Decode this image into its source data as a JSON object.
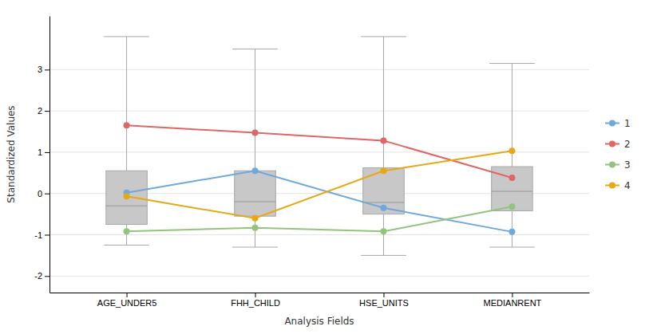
{
  "chart_data": {
    "type": "box",
    "xlabel": "Analysis Fields",
    "ylabel": "Standardized Values",
    "categories": [
      "AGE_UNDER5",
      "FHH_CHILD",
      "HSE_UNITS",
      "MEDIANRENT"
    ],
    "boxes": [
      {
        "q1": -0.75,
        "median": -0.3,
        "q3": 0.55,
        "whisker_low": -1.25,
        "whisker_high": 3.8
      },
      {
        "q1": -0.55,
        "median": -0.2,
        "q3": 0.55,
        "whisker_low": -1.3,
        "whisker_high": 3.5
      },
      {
        "q1": -0.5,
        "median": -0.22,
        "q3": 0.62,
        "whisker_low": -1.5,
        "whisker_high": 3.8
      },
      {
        "q1": -0.42,
        "median": 0.05,
        "q3": 0.65,
        "whisker_low": -1.3,
        "whisker_high": 3.15
      }
    ],
    "color": "#C8C8C8",
    "series": [
      {
        "name": "1",
        "type": "line",
        "marker": "circle",
        "color": "#6FA8DC",
        "values": [
          0.02,
          0.55,
          -0.35,
          -0.93
        ]
      },
      {
        "name": "2",
        "type": "line",
        "marker": "circle",
        "color": "#E06666",
        "values": [
          1.65,
          1.47,
          1.28,
          0.38
        ]
      },
      {
        "name": "3",
        "type": "line",
        "marker": "circle",
        "color": "#93C47D",
        "values": [
          -0.92,
          -0.83,
          -0.92,
          -0.32
        ]
      },
      {
        "name": "4",
        "type": "line",
        "marker": "circle",
        "color": "#E6A817",
        "values": [
          -0.07,
          -0.6,
          0.55,
          1.03
        ]
      }
    ],
    "ylim": [
      -2.4,
      4.3
    ],
    "yticks": [
      -2,
      -1,
      0,
      1,
      2,
      3
    ],
    "grid": true,
    "legend": "right"
  }
}
